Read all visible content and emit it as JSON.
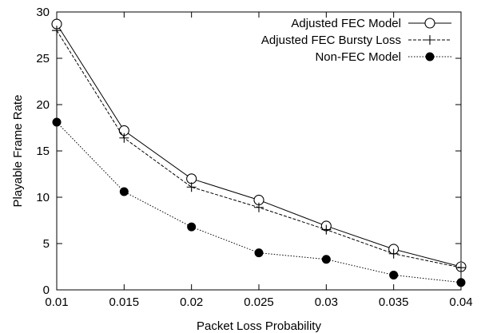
{
  "chart_data": {
    "type": "line",
    "title": "",
    "xlabel": "Packet Loss Probability",
    "ylabel": "Playable Frame Rate",
    "x": [
      0.01,
      0.015,
      0.02,
      0.025,
      0.03,
      0.035,
      0.04
    ],
    "x_tick_labels": [
      "0.01",
      "0.015",
      "0.02",
      "0.025",
      "0.03",
      "0.035",
      "0.04"
    ],
    "xlim": [
      0.01,
      0.04
    ],
    "ylim": [
      0,
      30
    ],
    "y_ticks": [
      0,
      5,
      10,
      15,
      20,
      25,
      30
    ],
    "y_tick_labels": [
      "0",
      "5",
      "10",
      "15",
      "20",
      "25",
      "30"
    ],
    "grid": false,
    "legend_position": "top-right",
    "series": [
      {
        "name": "Adjusted FEC Model",
        "values": [
          28.7,
          17.2,
          12.0,
          9.7,
          6.9,
          4.4,
          2.5
        ],
        "line_style": "solid",
        "marker": "open-circle",
        "color": "#000000"
      },
      {
        "name": "Adjusted FEC Bursty Loss",
        "values": [
          28.0,
          16.4,
          11.1,
          8.9,
          6.5,
          3.9,
          2.4
        ],
        "line_style": "dashed",
        "marker": "plus",
        "color": "#000000"
      },
      {
        "name": "Non-FEC Model",
        "values": [
          18.1,
          10.6,
          6.8,
          4.0,
          3.3,
          1.6,
          0.8
        ],
        "line_style": "dotted",
        "marker": "filled-circle",
        "color": "#000000"
      }
    ]
  }
}
